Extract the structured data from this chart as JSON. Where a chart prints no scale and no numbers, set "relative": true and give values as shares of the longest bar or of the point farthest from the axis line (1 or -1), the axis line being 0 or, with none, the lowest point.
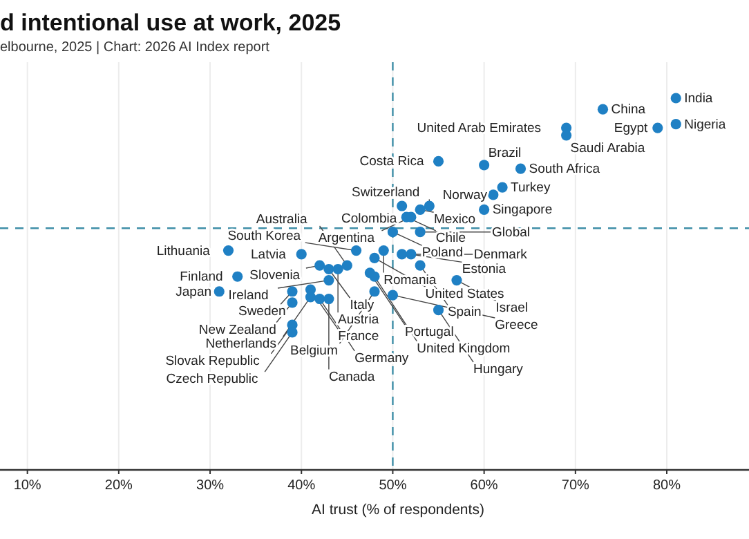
{
  "chart_data": {
    "type": "scatter",
    "title": "d intentional use at work, 2025",
    "subtitle": "elbourne, 2025 | Chart: 2026 AI Index report",
    "xlabel": "AI trust (% of respondents)",
    "relative": true,
    "xlim": [
      7,
      89
    ],
    "xticks": [
      {
        "value": 10,
        "label": "10%"
      },
      {
        "value": 20,
        "label": "20%"
      },
      {
        "value": 30,
        "label": "30%"
      },
      {
        "value": 40,
        "label": "40%"
      },
      {
        "value": 50,
        "label": "50%"
      },
      {
        "value": 60,
        "label": "60%"
      },
      {
        "value": 70,
        "label": "70%"
      },
      {
        "value": 80,
        "label": "80%"
      }
    ],
    "grid": "x",
    "marker": "circle",
    "x": [
      81,
      73,
      81,
      79,
      69,
      69,
      55,
      60,
      64,
      62,
      61,
      60,
      54,
      53,
      51,
      51.5,
      52,
      50,
      53,
      46,
      49,
      48,
      51,
      52,
      53,
      32,
      40,
      42,
      43,
      44,
      45,
      47.5,
      48,
      33,
      43,
      57,
      31,
      39,
      41,
      48,
      41,
      39,
      42,
      43,
      50,
      55,
      39,
      39
    ],
    "series": [
      {
        "color": "#1f80c4",
        "values": [
          1.0,
          0.97,
          0.93,
          0.92,
          0.92,
          0.9,
          0.83,
          0.82,
          0.81,
          0.76,
          0.74,
          0.7,
          0.71,
          0.7,
          0.71,
          0.68,
          0.68,
          0.64,
          0.64,
          0.59,
          0.59,
          0.57,
          0.58,
          0.58,
          0.55,
          0.59,
          0.58,
          0.55,
          0.54,
          0.54,
          0.55,
          0.53,
          0.52,
          0.52,
          0.51,
          0.51,
          0.48,
          0.48,
          0.485,
          0.48,
          0.465,
          0.45,
          0.46,
          0.46,
          0.47,
          0.43,
          0.39,
          0.37
        ]
      }
    ],
    "annotations": [
      {
        "text": "India",
        "x": 81,
        "y": 1.0
      },
      {
        "text": "China",
        "x": 73,
        "y": 0.97
      },
      {
        "text": "Nigeria",
        "x": 81,
        "y": 0.93
      },
      {
        "text": "Egypt",
        "x": 79,
        "y": 0.92
      },
      {
        "text": "United Arab Emirates",
        "x": 69,
        "y": 0.92
      },
      {
        "text": "Saudi Arabia",
        "x": 69,
        "y": 0.9
      },
      {
        "text": "Costa Rica",
        "x": 55,
        "y": 0.83
      },
      {
        "text": "Brazil",
        "x": 60,
        "y": 0.82
      },
      {
        "text": "South Africa",
        "x": 64,
        "y": 0.81
      },
      {
        "text": "Turkey",
        "x": 62,
        "y": 0.76
      },
      {
        "text": "Norway",
        "x": 61,
        "y": 0.74
      },
      {
        "text": "Singapore",
        "x": 60,
        "y": 0.7
      },
      {
        "text": "Switzerland",
        "x": 54,
        "y": 0.71
      },
      {
        "text": "Mexico",
        "x": 53,
        "y": 0.7
      },
      {
        "text": "Colombia",
        "x": 51,
        "y": 0.71
      },
      {
        "text": "Chile",
        "x": 51.5,
        "y": 0.68
      },
      {
        "text": "Argentina",
        "x": 52,
        "y": 0.68
      },
      {
        "text": "Poland",
        "x": 50,
        "y": 0.64
      },
      {
        "text": "Global",
        "x": 53,
        "y": 0.64
      },
      {
        "text": "South Korea",
        "x": 46,
        "y": 0.59
      },
      {
        "text": "Romania",
        "x": 49,
        "y": 0.59
      },
      {
        "text": "United States",
        "x": 48,
        "y": 0.57
      },
      {
        "text": "Denmark",
        "x": 51,
        "y": 0.58
      },
      {
        "text": "Estonia",
        "x": 52,
        "y": 0.58
      },
      {
        "text": "Spain",
        "x": 53,
        "y": 0.55
      },
      {
        "text": "Lithuania",
        "x": 32,
        "y": 0.59
      },
      {
        "text": "Latvia",
        "x": 40,
        "y": 0.58
      },
      {
        "text": "Slovenia",
        "x": 42,
        "y": 0.55
      },
      {
        "text": "Italy",
        "x": 43,
        "y": 0.54
      },
      {
        "text": "Austria",
        "x": 44,
        "y": 0.54
      },
      {
        "text": "Australia",
        "x": 45,
        "y": 0.55
      },
      {
        "text": "Portugal",
        "x": 47.5,
        "y": 0.53
      },
      {
        "text": "United Kingdom",
        "x": 48,
        "y": 0.52
      },
      {
        "text": "Finland",
        "x": 33,
        "y": 0.52
      },
      {
        "text": "Ireland",
        "x": 43,
        "y": 0.51
      },
      {
        "text": "Israel",
        "x": 57,
        "y": 0.51
      },
      {
        "text": "Japan",
        "x": 31,
        "y": 0.48
      },
      {
        "text": "Sweden",
        "x": 39,
        "y": 0.48
      },
      {
        "text": "France",
        "x": 41,
        "y": 0.485
      },
      {
        "text": "Belgium",
        "x": 48,
        "y": 0.48
      },
      {
        "text": "Netherlands",
        "x": 41,
        "y": 0.465
      },
      {
        "text": "New Zealand",
        "x": 39,
        "y": 0.45
      },
      {
        "text": "Germany",
        "x": 42,
        "y": 0.46
      },
      {
        "text": "Canada",
        "x": 43,
        "y": 0.46
      },
      {
        "text": "Greece",
        "x": 50,
        "y": 0.47
      },
      {
        "text": "Hungary",
        "x": 55,
        "y": 0.43
      },
      {
        "text": "Slovak Republic",
        "x": 39,
        "y": 0.39
      },
      {
        "text": "Czech Republic",
        "x": 39,
        "y": 0.37
      }
    ],
    "ref_lines": [
      {
        "axis": "x",
        "value": 50,
        "color": "#3f8fa8",
        "line_style": "dashed"
      },
      {
        "axis": "y",
        "value": 0.65,
        "color": "#3f8fa8",
        "line_style": "dashed"
      }
    ]
  }
}
